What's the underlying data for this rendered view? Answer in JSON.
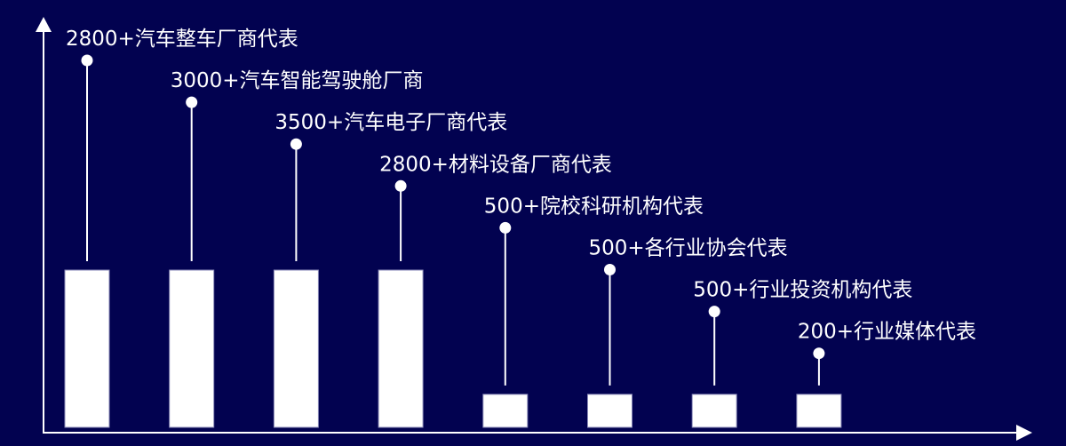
{
  "colors": {
    "background": "#020250",
    "foreground": "#ffffff"
  },
  "chart_data": {
    "type": "bar",
    "title": "",
    "xlabel": "",
    "ylabel": "",
    "grid": false,
    "categories": [
      "2800+汽车整车厂商代表",
      "3000+汽车智能驾驶舱厂商",
      "3500+汽车电子厂商代表",
      "2800+材料设备厂商代表",
      "500+院校科研机构代表",
      "500+各行业协会代表",
      "500+行业投资机构代表",
      "200+行业媒体代表"
    ],
    "values": [
      2800,
      3000,
      3500,
      2800,
      500,
      500,
      500,
      200
    ],
    "bar_level": [
      1,
      1,
      1,
      1,
      0.21,
      0.21,
      0.21,
      0.21
    ]
  }
}
